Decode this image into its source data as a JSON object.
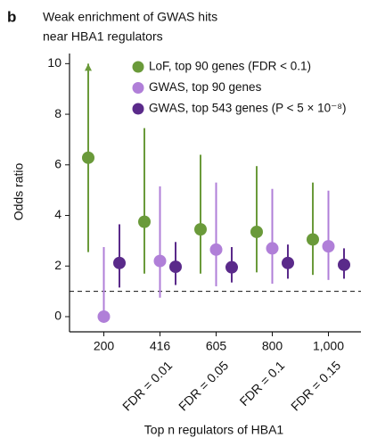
{
  "panel_label": "b",
  "chart_data": {
    "type": "errorpoint",
    "title": [
      "Weak enrichment of GWAS hits",
      "near HBA1 regulators"
    ],
    "y_label": "Odds ratio",
    "x_label": "Top n regulators of HBA1",
    "categories": [
      "200",
      "416",
      "605",
      "800",
      "1,000"
    ],
    "category_sublabels": [
      null,
      "FDR = 0.01",
      "FDR = 0.05",
      "FDR = 0.1",
      "FDR = 0.15"
    ],
    "ylim": [
      -0.6,
      10.4
    ],
    "yticks": [
      0,
      2,
      4,
      6,
      8,
      10
    ],
    "reference_line": 1,
    "legend": "top-right",
    "series": [
      {
        "name": "LoF, top 90 genes (FDR < 0.1)",
        "color": "#6a9a3a",
        "values": [
          6.28,
          3.75,
          3.45,
          3.35,
          3.05
        ],
        "lower": [
          2.55,
          1.7,
          1.7,
          1.75,
          1.65
        ],
        "upper": [
          10,
          7.45,
          6.4,
          5.95,
          5.3
        ],
        "arrows": [
          true,
          false,
          false,
          false,
          false
        ]
      },
      {
        "name": "GWAS, top 90 genes",
        "color": "#b07fd8",
        "values": [
          0,
          2.2,
          2.65,
          2.7,
          2.78
        ],
        "lower": [
          0,
          0.75,
          1.2,
          1.3,
          1.45
        ],
        "upper": [
          2.75,
          5.15,
          5.3,
          5.05,
          4.98
        ]
      },
      {
        "name": "GWAS, top 543 genes (P < 5 × 10⁻⁸)",
        "color": "#5a2a8a",
        "values": [
          2.12,
          1.97,
          1.95,
          2.12,
          2.05
        ],
        "lower": [
          1.15,
          1.25,
          1.35,
          1.5,
          1.5
        ],
        "upper": [
          3.65,
          2.95,
          2.75,
          2.85,
          2.7
        ]
      }
    ]
  }
}
